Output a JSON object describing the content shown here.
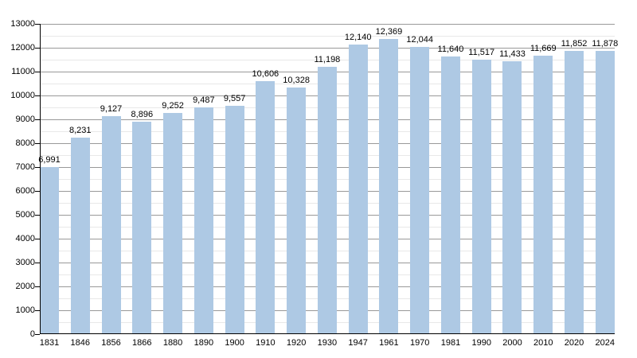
{
  "chart_data": {
    "type": "bar",
    "title": "",
    "xlabel": "",
    "ylabel": "",
    "categories": [
      "1831",
      "1846",
      "1856",
      "1866",
      "1880",
      "1890",
      "1900",
      "1910",
      "1920",
      "1930",
      "1947",
      "1961",
      "1970",
      "1981",
      "1990",
      "2000",
      "2010",
      "2020",
      "2024"
    ],
    "values": [
      6991,
      8231,
      9127,
      8896,
      9252,
      9487,
      9557,
      10606,
      10328,
      11198,
      12140,
      12369,
      12044,
      11640,
      11517,
      11433,
      11669,
      11852,
      11878
    ],
    "value_labels": [
      "6,991",
      "8,231",
      "9,127",
      "8,896",
      "9,252",
      "9,487",
      "9,557",
      "10,606",
      "10,328",
      "11,198",
      "12,140",
      "12,369",
      "12,044",
      "11,640",
      "11,517",
      "11,433",
      "11,669",
      "11,852",
      "11,878"
    ],
    "ylim": [
      0,
      13000
    ],
    "y_major_step": 1000,
    "y_minor_step": 500,
    "y_tick_labels": [
      "0",
      "1000",
      "2000",
      "3000",
      "4000",
      "5000",
      "6000",
      "7000",
      "8000",
      "9000",
      "10000",
      "11000",
      "12000",
      "13000"
    ],
    "grid": true,
    "legend_position": "none"
  },
  "colors": {
    "bar": "#aec9e4",
    "major_gridline": "#999999",
    "minor_gridline": "#e8e8e8",
    "axis": "#000000",
    "tick": "#000000",
    "text": "#000000",
    "background": "#ffffff"
  }
}
